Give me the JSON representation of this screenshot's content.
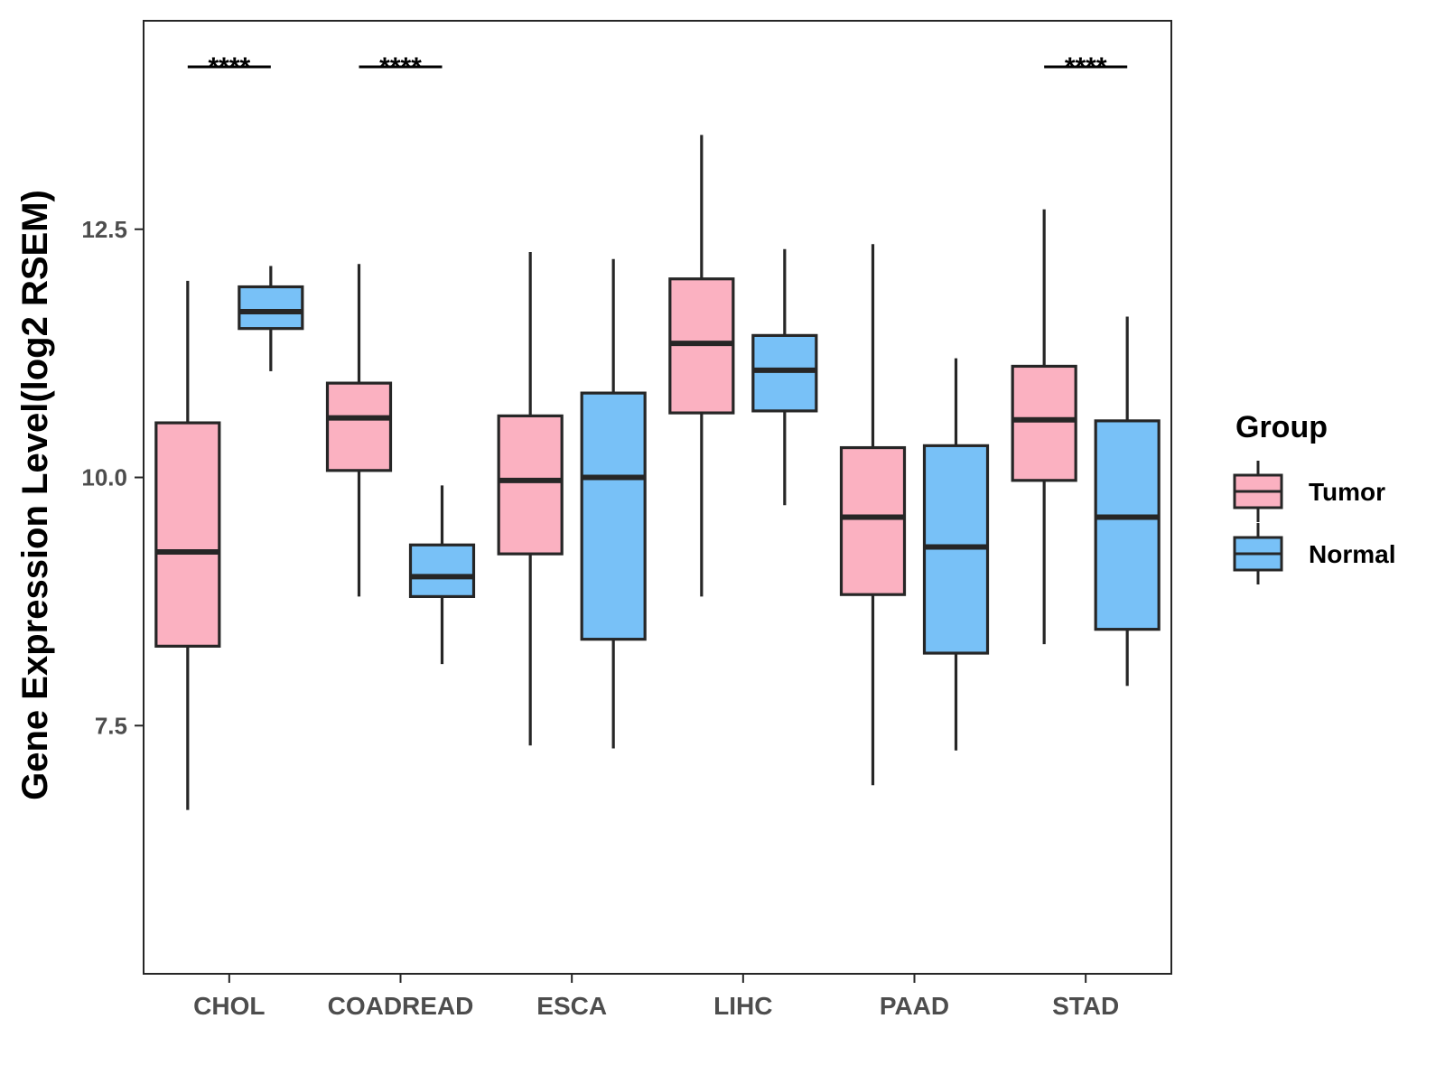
{
  "chart_data": {
    "type": "boxplot",
    "title": "",
    "xlabel": "",
    "ylabel": "Gene Expression Level(log2 RSEM)",
    "ylim": [
      5.0,
      14.6
    ],
    "yticks": [
      {
        "value": 7.5,
        "label": "7.5"
      },
      {
        "value": 10.0,
        "label": "10.0"
      },
      {
        "value": 12.5,
        "label": "12.5"
      }
    ],
    "grid": false,
    "legend": {
      "title": "Group",
      "position": "right",
      "entries": [
        {
          "name": "Tumor",
          "color": "#FBB1C1"
        },
        {
          "name": "Normal",
          "color": "#78C1F7"
        }
      ]
    },
    "categories": [
      "CHOL",
      "COADREAD",
      "ESCA",
      "LIHC",
      "PAAD",
      "STAD"
    ],
    "series": [
      {
        "name": "Tumor",
        "color": "#FBB1C1",
        "boxes": [
          {
            "min": 6.65,
            "q1": 8.3,
            "median": 9.25,
            "q3": 10.55,
            "max": 11.98
          },
          {
            "min": 8.8,
            "q1": 10.07,
            "median": 10.6,
            "q3": 10.95,
            "max": 12.15
          },
          {
            "min": 7.3,
            "q1": 9.23,
            "median": 9.97,
            "q3": 10.62,
            "max": 12.27
          },
          {
            "min": 8.8,
            "q1": 10.65,
            "median": 11.35,
            "q3": 12.0,
            "max": 13.45
          },
          {
            "min": 6.9,
            "q1": 8.82,
            "median": 9.6,
            "q3": 10.3,
            "max": 12.35
          },
          {
            "min": 8.32,
            "q1": 9.97,
            "median": 10.58,
            "q3": 11.12,
            "max": 12.7
          }
        ]
      },
      {
        "name": "Normal",
        "color": "#78C1F7",
        "boxes": [
          {
            "min": 11.07,
            "q1": 11.5,
            "median": 11.67,
            "q3": 11.92,
            "max": 12.13
          },
          {
            "min": 8.12,
            "q1": 8.8,
            "median": 9.0,
            "q3": 9.32,
            "max": 9.92
          },
          {
            "min": 7.27,
            "q1": 8.37,
            "median": 10.0,
            "q3": 10.85,
            "max": 12.2
          },
          {
            "min": 9.72,
            "q1": 10.67,
            "median": 11.08,
            "q3": 11.43,
            "max": 12.3
          },
          {
            "min": 7.25,
            "q1": 8.23,
            "median": 9.3,
            "q3": 10.32,
            "max": 11.2
          },
          {
            "min": 7.9,
            "q1": 8.47,
            "median": 9.6,
            "q3": 10.57,
            "max": 11.62
          }
        ]
      }
    ],
    "annotations": [
      {
        "category": "CHOL",
        "text": "****"
      },
      {
        "category": "COADREAD",
        "text": "****"
      },
      {
        "category": "STAD",
        "text": "****"
      }
    ],
    "colors": {
      "box_outline": "#262626",
      "axis": "#262626",
      "tick_text": "#4d4d4d"
    }
  }
}
